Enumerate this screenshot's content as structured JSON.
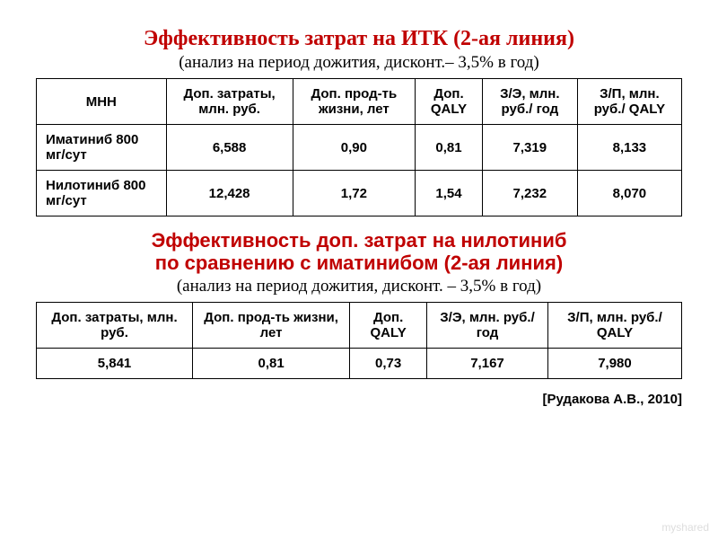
{
  "title1": "Эффективность затрат на ИТК (2-ая линия)",
  "subtitle1": "(анализ на период дожития, дисконт.– 3,5% в год)",
  "table1": {
    "headers": [
      "МНН",
      "Доп. затраты, млн. руб.",
      "Доп. прод-ть жизни, лет",
      "Доп. QALY",
      "З/Э, млн. руб./ год",
      "З/П, млн. руб./ QALY"
    ],
    "rows": [
      [
        "Иматиниб 800 мг/сут",
        "6,588",
        "0,90",
        "0,81",
        "7,319",
        "8,133"
      ],
      [
        "Нилотиниб 800 мг/сут",
        "12,428",
        "1,72",
        "1,54",
        "7,232",
        "8,070"
      ]
    ]
  },
  "title2a": "Эффективность доп. затрат на нилотиниб",
  "title2b": "по сравнению с иматинибом (2-ая линия)",
  "subtitle2": "(анализ на период дожития, дисконт. – 3,5% в год)",
  "table2": {
    "headers": [
      "Доп. затраты, млн. руб.",
      "Доп. прод-ть жизни, лет",
      "Доп. QALY",
      "З/Э, млн. руб./ год",
      "З/П, млн. руб./ QALY"
    ],
    "rows": [
      [
        "5,841",
        "0,81",
        "0,73",
        "7,167",
        "7,980"
      ]
    ]
  },
  "citation": "[Рудакова А.В., 2010]",
  "watermark": "myshared",
  "colors": {
    "title": "#c00000",
    "border": "#000000",
    "text": "#000000",
    "background": "#ffffff"
  }
}
